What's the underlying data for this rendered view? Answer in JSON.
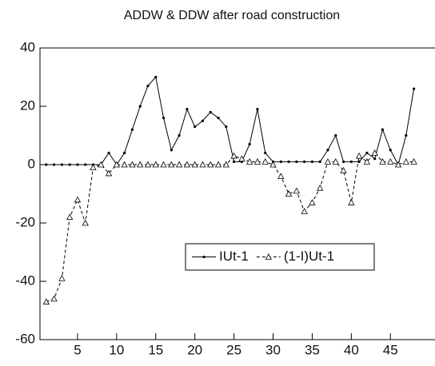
{
  "chart_data": {
    "type": "line",
    "title": "ADDW & DDW after  road construction",
    "x": [
      1,
      2,
      3,
      4,
      5,
      6,
      7,
      8,
      9,
      10,
      11,
      12,
      13,
      14,
      15,
      16,
      17,
      18,
      19,
      20,
      21,
      22,
      23,
      24,
      25,
      26,
      27,
      28,
      29,
      30,
      31,
      32,
      33,
      34,
      35,
      36,
      37,
      38,
      39,
      40,
      41,
      42,
      43,
      44,
      45,
      46,
      47,
      48
    ],
    "series": [
      {
        "name": "IUt-1",
        "color": "#000000",
        "dash": "solid",
        "marker": "dot",
        "values": [
          0,
          0,
          0,
          0,
          0,
          0,
          0,
          0,
          4,
          0,
          4,
          12,
          20,
          27,
          30,
          16,
          5,
          10,
          19,
          13,
          15,
          18,
          16,
          13,
          1,
          1,
          7,
          19,
          4,
          1,
          1,
          1,
          1,
          1,
          1,
          1,
          5,
          10,
          1,
          1,
          1,
          4,
          2,
          12,
          5,
          0,
          10,
          26
        ]
      },
      {
        "name": "(1-I)Ut-1",
        "color": "#000000",
        "dash": "dashed",
        "marker": "triangle",
        "values": [
          -47,
          -46,
          -39,
          -18,
          -12,
          -20,
          -1,
          0,
          -3,
          0,
          0,
          0,
          0,
          0,
          0,
          0,
          0,
          0,
          0,
          0,
          0,
          0,
          0,
          0,
          3,
          2,
          1,
          1,
          1,
          0,
          -4,
          -10,
          -9,
          -16,
          -13,
          -8,
          1,
          1,
          -2,
          -13,
          3,
          1,
          4,
          1,
          1,
          0,
          1,
          1
        ]
      }
    ],
    "xlim": [
      0.2,
      50.7
    ],
    "xticks": [
      5,
      10,
      15,
      20,
      25,
      30,
      35,
      40,
      45
    ],
    "ylim": [
      -60,
      40
    ],
    "yticks": [
      -60,
      -40,
      -20,
      0,
      20,
      40
    ],
    "grid": false,
    "legend": "center"
  }
}
